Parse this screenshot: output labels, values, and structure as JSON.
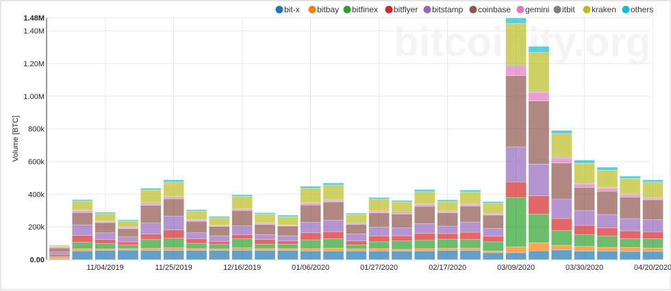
{
  "watermark": "bitcoinity.org",
  "chart_data": {
    "type": "bar",
    "stacked": true,
    "ylabel": "Volume [BTC]",
    "ylim": [
      0,
      1480000
    ],
    "yticks": [
      "0.00",
      "200k",
      "400k",
      "600k",
      "800k",
      "1.00M",
      "1.20M",
      "1.40M",
      "1.48M"
    ],
    "ytick_values": [
      0,
      200000,
      400000,
      600000,
      800000,
      1000000,
      1200000,
      1400000,
      1480000
    ],
    "grid": true,
    "legend_position": "top",
    "x": [
      "10/21/2019",
      "10/28/2019",
      "11/04/2019",
      "11/11/2019",
      "11/18/2019",
      "11/25/2019",
      "12/02/2019",
      "12/09/2019",
      "12/16/2019",
      "12/23/2019",
      "12/30/2019",
      "01/06/2020",
      "01/13/2020",
      "01/20/2020",
      "01/27/2020",
      "02/03/2020",
      "02/10/2020",
      "02/17/2020",
      "02/24/2020",
      "03/02/2020",
      "03/09/2020",
      "03/16/2020",
      "03/23/2020",
      "03/30/2020",
      "04/06/2020",
      "04/13/2020",
      "04/20/2020"
    ],
    "xticks": [
      "11/04/2019",
      "11/25/2019",
      "12/16/2019",
      "01/06/2020",
      "01/27/2020",
      "02/17/2020",
      "03/09/2020",
      "03/30/2020",
      "04/20/2020"
    ],
    "value_unit": "k BTC",
    "series": [
      {
        "name": "bit-x",
        "color": "#1f77b4",
        "values": [
          4,
          53,
          56,
          58,
          56,
          56,
          56,
          56,
          57,
          56,
          56,
          53,
          53,
          53,
          53,
          52,
          53,
          56,
          56,
          42,
          42,
          54,
          59,
          52,
          52,
          50,
          50
        ]
      },
      {
        "name": "bitbay",
        "color": "#ff7f0e",
        "values": [
          9,
          13,
          9,
          9,
          14,
          16,
          11,
          9,
          15,
          11,
          11,
          14,
          17,
          12,
          14,
          11,
          14,
          14,
          15,
          11,
          36,
          50,
          29,
          29,
          23,
          25,
          21
        ]
      },
      {
        "name": "bitfinex",
        "color": "#2ca02c",
        "values": [
          8,
          40,
          33,
          22,
          53,
          59,
          33,
          28,
          56,
          28,
          28,
          54,
          58,
          26,
          42,
          51,
          51,
          55,
          52,
          56,
          302,
          175,
          90,
          72,
          70,
          53,
          57
        ]
      },
      {
        "name": "bitflyer",
        "color": "#d62728",
        "values": [
          11,
          42,
          25,
          20,
          33,
          50,
          28,
          18,
          25,
          28,
          19,
          43,
          43,
          23,
          36,
          32,
          42,
          34,
          44,
          34,
          96,
          111,
          73,
          56,
          49,
          48,
          42
        ]
      },
      {
        "name": "bitstamp",
        "color": "#9467bd",
        "values": [
          15,
          65,
          41,
          30,
          67,
          84,
          36,
          35,
          53,
          30,
          32,
          64,
          71,
          43,
          54,
          49,
          60,
          46,
          63,
          49,
          214,
          195,
          118,
          92,
          82,
          75,
          74
        ]
      },
      {
        "name": "coinbase",
        "color": "#8c564b",
        "values": [
          24,
          75,
          62,
          50,
          109,
          107,
          70,
          57,
          94,
          62,
          59,
          106,
          110,
          59,
          87,
          84,
          106,
          82,
          97,
          80,
          436,
          386,
          222,
          141,
          142,
          131,
          121
        ]
      },
      {
        "name": "gemini",
        "color": "#e377c2",
        "values": [
          7,
          10,
          8,
          7,
          11,
          10,
          8,
          5,
          9,
          7,
          4,
          10,
          10,
          5,
          7,
          5,
          11,
          6,
          10,
          7,
          58,
          51,
          30,
          20,
          18,
          15,
          11
        ]
      },
      {
        "name": "itbit",
        "color": "#7f7f7f",
        "values": [
          2,
          4,
          3,
          3,
          5,
          5,
          3,
          2,
          4,
          4,
          3,
          4,
          4,
          5,
          4,
          7,
          4,
          4,
          4,
          4,
          7,
          5,
          6,
          5,
          4,
          4,
          4
        ]
      },
      {
        "name": "kraken",
        "color": "#bcbd22",
        "values": [
          5,
          56,
          44,
          38,
          78,
          87,
          52,
          46,
          74,
          53,
          50,
          88,
          90,
          50,
          72,
          61,
          74,
          58,
          73,
          61,
          254,
          241,
          143,
          122,
          107,
          95,
          94
        ]
      },
      {
        "name": "others",
        "color": "#17becf",
        "values": [
          4,
          9,
          9,
          7,
          11,
          14,
          9,
          9,
          10,
          8,
          10,
          13,
          13,
          8,
          11,
          10,
          14,
          11,
          12,
          11,
          34,
          37,
          21,
          20,
          19,
          15,
          14
        ]
      }
    ]
  }
}
